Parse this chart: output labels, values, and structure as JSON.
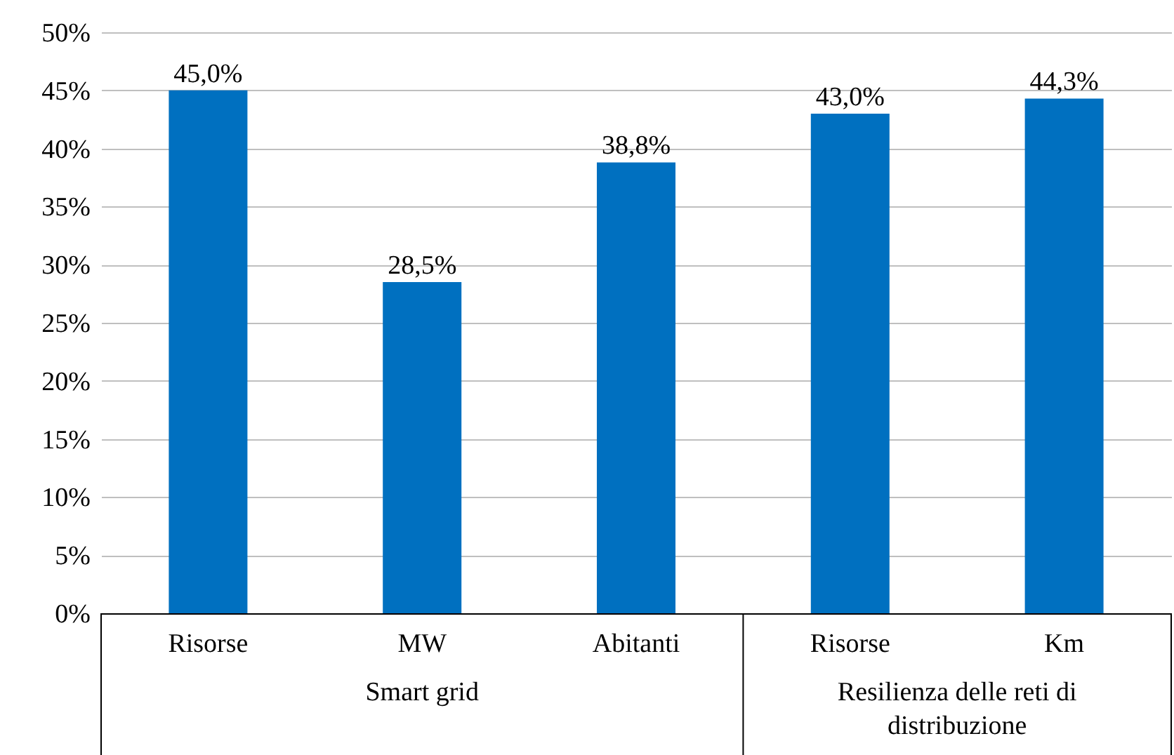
{
  "chart_data": {
    "type": "bar",
    "categories": [
      "Risorse",
      "MW",
      "Abitanti",
      "Risorse",
      "Km"
    ],
    "values": [
      45.0,
      28.5,
      38.8,
      43.0,
      44.3
    ],
    "value_labels": [
      "45,0%",
      "28,5%",
      "38,8%",
      "43,0%",
      "44,3%"
    ],
    "color": "#0070c0",
    "ylim": [
      0,
      50
    ],
    "yticks": [
      {
        "value": 0,
        "label": "0%"
      },
      {
        "value": 5,
        "label": "5%"
      },
      {
        "value": 10,
        "label": "10%"
      },
      {
        "value": 15,
        "label": "15%"
      },
      {
        "value": 20,
        "label": "20%"
      },
      {
        "value": 25,
        "label": "25%"
      },
      {
        "value": 30,
        "label": "30%"
      },
      {
        "value": 35,
        "label": "35%"
      },
      {
        "value": 40,
        "label": "40%"
      },
      {
        "value": 45,
        "label": "45%"
      },
      {
        "value": 50,
        "label": "50%"
      }
    ],
    "grid": "y",
    "annotations": [
      "Smart grid",
      "Resilienza delle reti di distribuzione"
    ]
  }
}
